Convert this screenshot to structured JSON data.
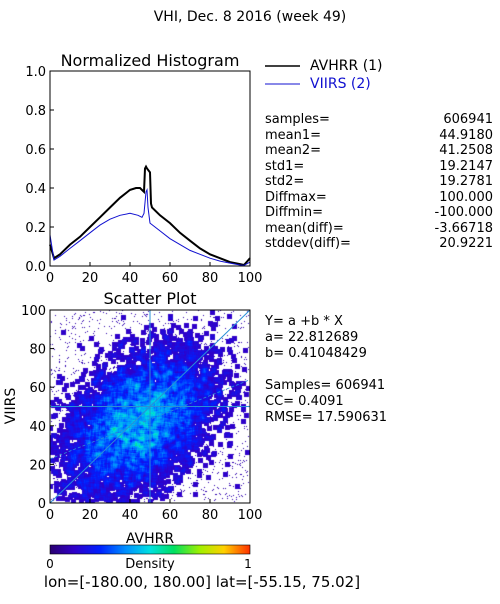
{
  "page": {
    "title": "VHI,  Dec. 8 2016 (week 49)",
    "footer": "lon=[-180.00, 180.00] lat=[-55.15, 75.02]"
  },
  "histogram_stats": [
    {
      "label": "samples=",
      "value": "606941"
    },
    {
      "label": "mean1=",
      "value": "44.9180"
    },
    {
      "label": "mean2=",
      "value": "41.2508"
    },
    {
      "label": "std1=",
      "value": "19.2147"
    },
    {
      "label": "std2=",
      "value": "19.2781"
    },
    {
      "label": "Diffmax=",
      "value": "100.000"
    },
    {
      "label": "Diffmin=",
      "value": "-100.000"
    },
    {
      "label": "mean(diff)=",
      "value": "-3.66718"
    },
    {
      "label": "stddev(diff)=",
      "value": "20.9221"
    }
  ],
  "regression": {
    "equation": "Y= a +b * X",
    "a": "a= 22.812689",
    "b": "b= 0.41048429",
    "samples": "Samples= 606941",
    "cc": "CC=  0.4091",
    "rmse": "RMSE= 17.590631"
  },
  "colors": {
    "avhrr": "#000000",
    "viirs": "#1010d0",
    "grid": "#2a8fd6"
  },
  "chart_data": [
    {
      "type": "line",
      "title": "Normalized Histogram",
      "xlabel": "",
      "ylabel": "",
      "xlim": [
        0,
        100
      ],
      "ylim": [
        0,
        1.0
      ],
      "xticks": [
        "0",
        "20",
        "40",
        "60",
        "80",
        "100"
      ],
      "yticks": [
        "0.0",
        "0.2",
        "0.4",
        "0.6",
        "0.8",
        "1.0"
      ],
      "legend_position": "right-of-plot",
      "series": [
        {
          "name": "AVHRR (1)",
          "x": [
            0,
            2,
            5,
            10,
            15,
            20,
            25,
            30,
            35,
            40,
            43,
            45,
            47,
            47.5,
            48,
            48.5,
            50,
            50.5,
            51,
            55,
            60,
            65,
            70,
            75,
            80,
            85,
            90,
            95,
            97,
            100
          ],
          "y": [
            0.11,
            0.04,
            0.06,
            0.11,
            0.15,
            0.2,
            0.25,
            0.3,
            0.35,
            0.39,
            0.4,
            0.4,
            0.38,
            0.5,
            0.51,
            0.5,
            0.48,
            0.32,
            0.3,
            0.26,
            0.22,
            0.17,
            0.13,
            0.09,
            0.06,
            0.04,
            0.02,
            0.01,
            0.005,
            0.04
          ]
        },
        {
          "name": "VIIRS (2)",
          "x": [
            0,
            2,
            5,
            10,
            15,
            20,
            25,
            30,
            35,
            40,
            44,
            46,
            47,
            48,
            48.5,
            49,
            50,
            55,
            60,
            65,
            70,
            75,
            80,
            85,
            90,
            95,
            97,
            100
          ],
          "y": [
            0.16,
            0.03,
            0.05,
            0.09,
            0.13,
            0.17,
            0.21,
            0.24,
            0.26,
            0.27,
            0.26,
            0.25,
            0.27,
            0.38,
            0.39,
            0.3,
            0.22,
            0.18,
            0.14,
            0.11,
            0.08,
            0.06,
            0.04,
            0.025,
            0.015,
            0.005,
            0.003,
            0.02
          ]
        }
      ]
    },
    {
      "type": "heatmap",
      "title": "Scatter Plot",
      "xlabel": "AVHRR",
      "ylabel": "VIIRS",
      "xlim": [
        0,
        100
      ],
      "ylim": [
        0,
        100
      ],
      "xticks": [
        "0",
        "20",
        "40",
        "60",
        "80",
        "100"
      ],
      "yticks": [
        "0",
        "20",
        "40",
        "60",
        "80",
        "100"
      ],
      "colorbar": {
        "label": "Density",
        "min_label": "0",
        "max_label": "1",
        "colormap": "rainbow"
      },
      "density_center": [
        44.9,
        41.3
      ],
      "density_std": [
        19.2,
        19.3
      ],
      "correlation": 0.4091,
      "regression_line": {
        "a": 22.812689,
        "b": 0.41048429
      },
      "reference_lines": {
        "x": 50,
        "y": 50
      },
      "grid": true
    }
  ]
}
